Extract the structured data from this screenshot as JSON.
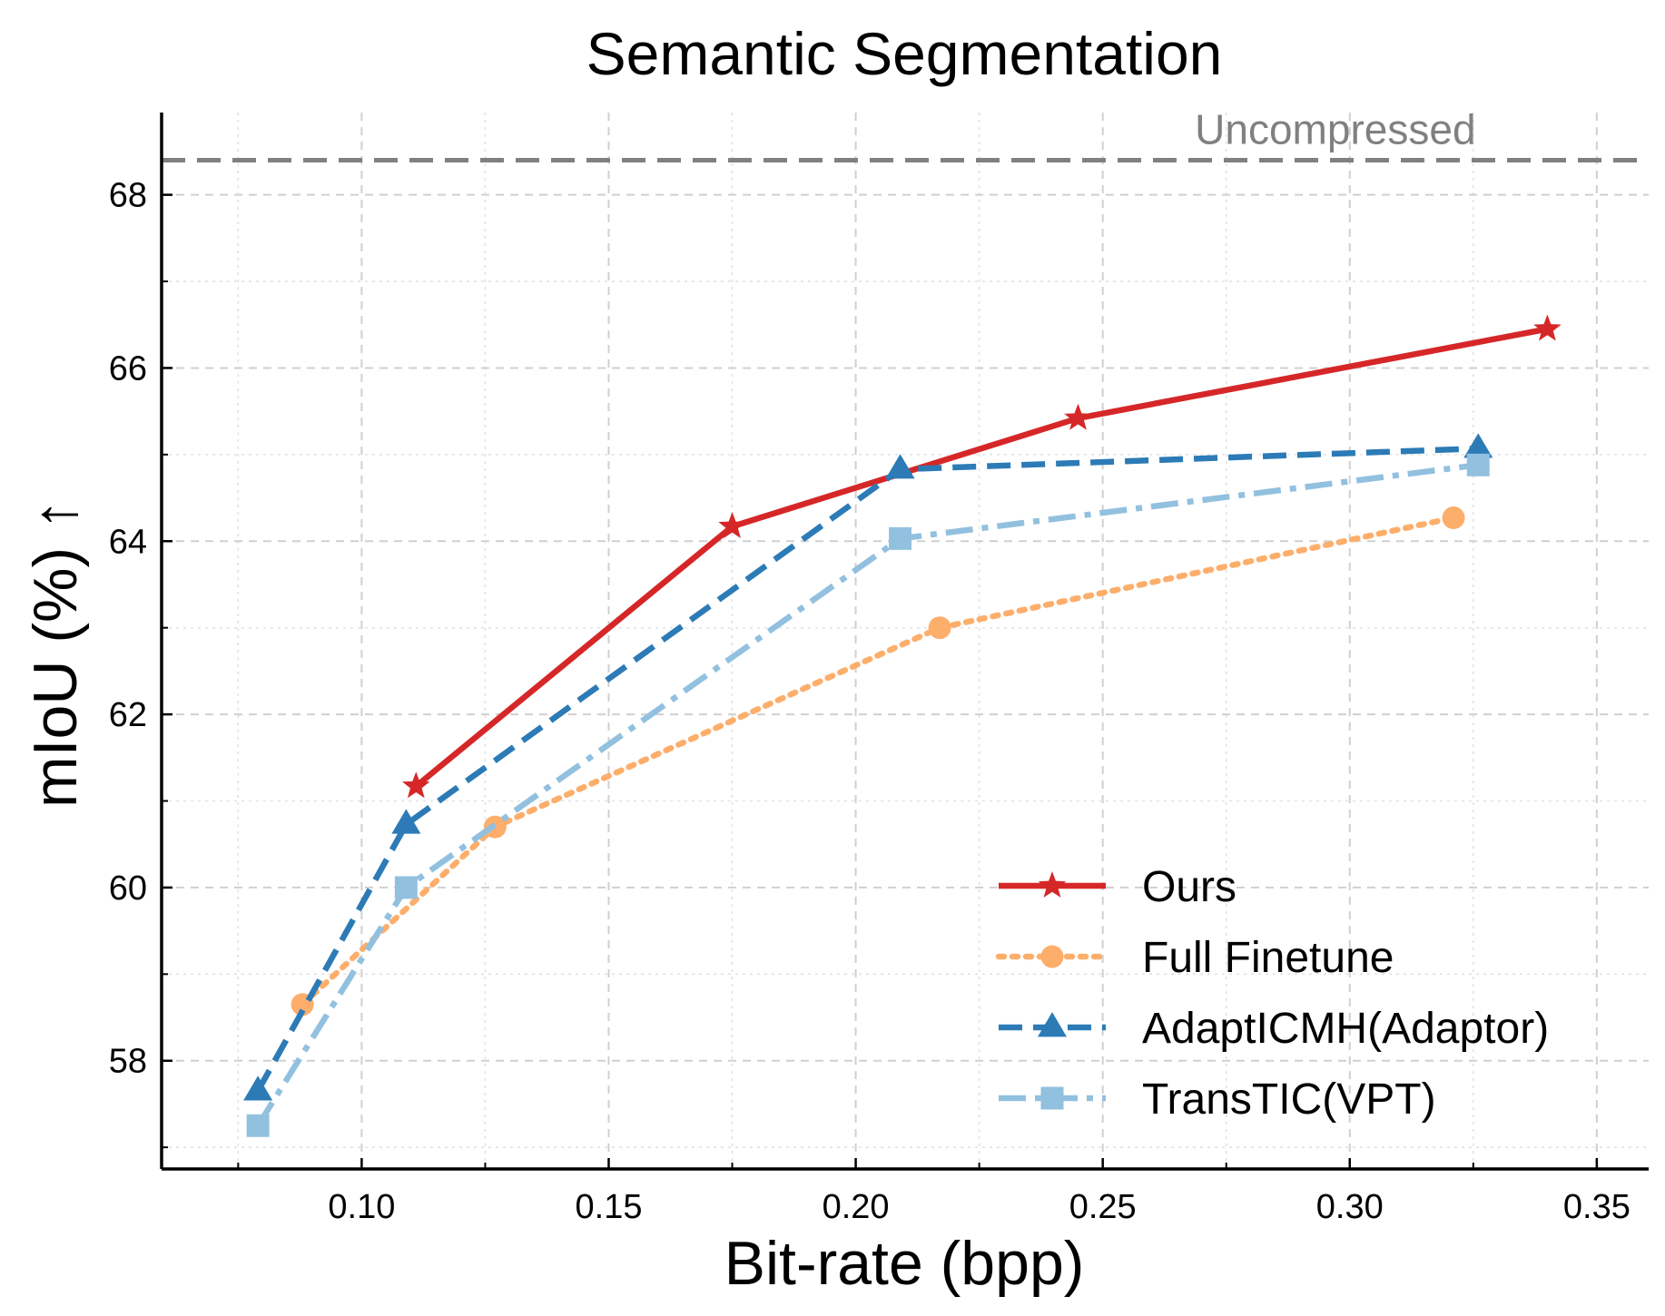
{
  "chart_data": {
    "type": "line",
    "title": "Semantic Segmentation",
    "xlabel": "Bit-rate (bpp)",
    "ylabel": "mIoU (%) ↑",
    "xlim": [
      0.0595,
      0.3605
    ],
    "ylim": [
      56.75,
      68.95
    ],
    "xticks": [
      0.1,
      0.15,
      0.2,
      0.25,
      0.3,
      0.35
    ],
    "xtick_labels": [
      "0.10",
      "0.15",
      "0.20",
      "0.25",
      "0.30",
      "0.35"
    ],
    "yticks": [
      58,
      60,
      62,
      64,
      66,
      68
    ],
    "ytick_labels": [
      "58",
      "60",
      "62",
      "64",
      "66",
      "68"
    ],
    "grid": true,
    "legend_position": "lower-right",
    "reference_line": {
      "label": "Uncompressed",
      "y": 68.4,
      "color": "#808080"
    },
    "series": [
      {
        "name": "Ours",
        "color": "#d62728",
        "linestyle": "solid",
        "marker": "star",
        "x": [
          0.111,
          0.175,
          0.245,
          0.34
        ],
        "y": [
          61.17,
          64.17,
          65.42,
          66.45
        ]
      },
      {
        "name": "Full Finetune",
        "color": "#fdae6b",
        "linestyle": "dotted",
        "marker": "circle",
        "x": [
          0.088,
          0.127,
          0.217,
          0.321
        ],
        "y": [
          58.65,
          60.7,
          63.0,
          64.27
        ]
      },
      {
        "name": "AdaptICMH(Adaptor)",
        "color": "#2c7bb6",
        "linestyle": "dashed",
        "marker": "triangle",
        "x": [
          0.079,
          0.109,
          0.209,
          0.326
        ],
        "y": [
          57.65,
          60.73,
          64.83,
          65.07
        ]
      },
      {
        "name": "TransTIC(VPT)",
        "color": "#92c0df",
        "linestyle": "dashdot",
        "marker": "square",
        "x": [
          0.079,
          0.109,
          0.209,
          0.326
        ],
        "y": [
          57.25,
          60.0,
          64.03,
          64.88
        ]
      }
    ]
  }
}
